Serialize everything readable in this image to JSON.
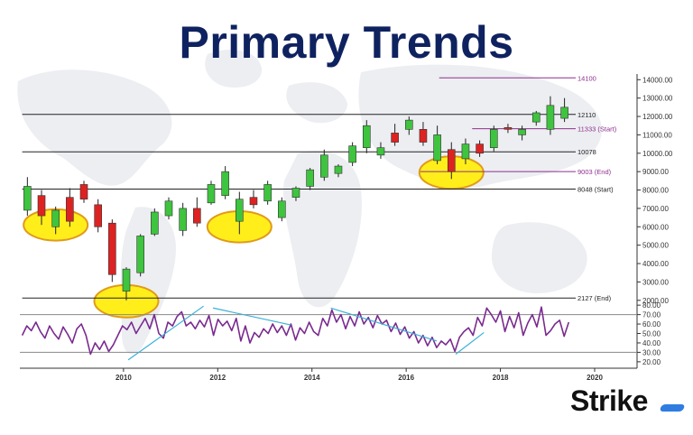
{
  "page": {
    "title": "Primary Trends",
    "brand": "Strike"
  },
  "chart_data": {
    "type": "candlestick",
    "title": "Primary Trends",
    "y_ticks": [
      14000,
      13000,
      12000,
      11000,
      10000,
      9000,
      8000,
      7000,
      6000,
      5000,
      4000,
      3000,
      2000
    ],
    "y_tick_labels": [
      "14000.00",
      "13000.00",
      "12000.00",
      "11000.00",
      "10000.00",
      "9000.00",
      "8000.00",
      "7000.00",
      "6000.00",
      "5000.00",
      "4000.00",
      "3000.00",
      "2000.00"
    ],
    "ylim": [
      1400,
      14800
    ],
    "x_ticks": [
      2010,
      2012,
      2014,
      2016,
      2018,
      2020
    ],
    "xlim": [
      2007.8,
      2020.9
    ],
    "colors": {
      "up": "#3ec43e",
      "down": "#dd2222",
      "level": "#222222",
      "marker": "#8e2f8e",
      "rsi": "#7a2a8f",
      "trend": "#3ab0d8",
      "highlight_fill": "#ffee1a",
      "highlight_edge": "#e09a1a"
    },
    "levels": [
      {
        "value": 12110,
        "label": "12110",
        "color": "#222222",
        "x_start": 2007.85
      },
      {
        "value": 10078,
        "label": "10078",
        "color": "#222222",
        "x_start": 2007.85
      },
      {
        "value": 8048,
        "label": "8048 (Start)",
        "color": "#222222",
        "x_start": 2007.85
      },
      {
        "value": 2127,
        "label": "2127 (End)",
        "color": "#222222",
        "x_start": 2007.85
      },
      {
        "value": 14100,
        "label": "14100",
        "color": "#8e2f8e",
        "x_start": 2016.7
      },
      {
        "value": 11333,
        "label": "11333 (Start)",
        "color": "#8e2f8e",
        "x_start": 2017.4
      },
      {
        "value": 9003,
        "label": "9003 (End)",
        "color": "#8e2f8e",
        "x_start": 2016.3
      }
    ],
    "candles": [
      {
        "x": 2007.96,
        "o": 6900,
        "h": 8700,
        "c": 8200,
        "l": 6600
      },
      {
        "x": 2008.26,
        "o": 7700,
        "h": 8000,
        "c": 6600,
        "l": 6100
      },
      {
        "x": 2008.56,
        "o": 6000,
        "h": 7100,
        "c": 6900,
        "l": 5600
      },
      {
        "x": 2008.86,
        "o": 7600,
        "h": 8100,
        "c": 6300,
        "l": 6000
      },
      {
        "x": 2009.16,
        "o": 8300,
        "h": 8500,
        "c": 7500,
        "l": 7300
      },
      {
        "x": 2009.46,
        "o": 7200,
        "h": 7500,
        "c": 6000,
        "l": 5700
      },
      {
        "x": 2009.76,
        "o": 6200,
        "h": 6400,
        "c": 3400,
        "l": 3000
      },
      {
        "x": 2010.06,
        "o": 2500,
        "h": 3800,
        "c": 3700,
        "l": 2000
      },
      {
        "x": 2010.36,
        "o": 3500,
        "h": 5600,
        "c": 5500,
        "l": 3300
      },
      {
        "x": 2010.66,
        "o": 5600,
        "h": 7000,
        "c": 6800,
        "l": 5500
      },
      {
        "x": 2010.96,
        "o": 6600,
        "h": 7600,
        "c": 7400,
        "l": 6400
      },
      {
        "x": 2011.26,
        "o": 5800,
        "h": 7300,
        "c": 7000,
        "l": 5500
      },
      {
        "x": 2011.56,
        "o": 7000,
        "h": 7600,
        "c": 6200,
        "l": 6000
      },
      {
        "x": 2011.86,
        "o": 7300,
        "h": 8500,
        "c": 8300,
        "l": 7200
      },
      {
        "x": 2012.16,
        "o": 7700,
        "h": 9300,
        "c": 9000,
        "l": 7500
      },
      {
        "x": 2012.46,
        "o": 6300,
        "h": 7900,
        "c": 7500,
        "l": 5600
      },
      {
        "x": 2012.76,
        "o": 7600,
        "h": 8000,
        "c": 7200,
        "l": 7000
      },
      {
        "x": 2013.06,
        "o": 7400,
        "h": 8500,
        "c": 8300,
        "l": 7200
      },
      {
        "x": 2013.36,
        "o": 6500,
        "h": 7600,
        "c": 7400,
        "l": 6300
      },
      {
        "x": 2013.66,
        "o": 7600,
        "h": 8200,
        "c": 8100,
        "l": 7400
      },
      {
        "x": 2013.96,
        "o": 8200,
        "h": 9200,
        "c": 9100,
        "l": 8000
      },
      {
        "x": 2014.26,
        "o": 8700,
        "h": 10200,
        "c": 9900,
        "l": 8500
      },
      {
        "x": 2014.56,
        "o": 8900,
        "h": 9400,
        "c": 9300,
        "l": 8700
      },
      {
        "x": 2014.86,
        "o": 9500,
        "h": 10600,
        "c": 10400,
        "l": 9300
      },
      {
        "x": 2015.16,
        "o": 10300,
        "h": 11800,
        "c": 11500,
        "l": 10000
      },
      {
        "x": 2015.46,
        "o": 9900,
        "h": 10600,
        "c": 10300,
        "l": 9700
      },
      {
        "x": 2015.76,
        "o": 11100,
        "h": 11600,
        "c": 10600,
        "l": 10400
      },
      {
        "x": 2016.06,
        "o": 11300,
        "h": 12000,
        "c": 11800,
        "l": 11000
      },
      {
        "x": 2016.36,
        "o": 11300,
        "h": 11700,
        "c": 10600,
        "l": 10400
      },
      {
        "x": 2016.66,
        "o": 9600,
        "h": 11500,
        "c": 11000,
        "l": 9400
      },
      {
        "x": 2016.96,
        "o": 10200,
        "h": 10600,
        "c": 9000,
        "l": 8600
      },
      {
        "x": 2017.26,
        "o": 9700,
        "h": 10800,
        "c": 10500,
        "l": 9400
      },
      {
        "x": 2017.56,
        "o": 10500,
        "h": 10700,
        "c": 10000,
        "l": 9800
      },
      {
        "x": 2017.86,
        "o": 10300,
        "h": 11500,
        "c": 11300,
        "l": 10100
      },
      {
        "x": 2018.16,
        "o": 11400,
        "h": 11600,
        "c": 11300,
        "l": 11100
      },
      {
        "x": 2018.46,
        "o": 11000,
        "h": 11500,
        "c": 11300,
        "l": 10700
      },
      {
        "x": 2018.76,
        "o": 11700,
        "h": 12300,
        "c": 12200,
        "l": 11500
      },
      {
        "x": 2019.06,
        "o": 11300,
        "h": 13100,
        "c": 12600,
        "l": 11000
      },
      {
        "x": 2019.36,
        "o": 11900,
        "h": 13000,
        "c": 12500,
        "l": 11700
      }
    ],
    "highlights": [
      {
        "x": 2008.56,
        "y": 6100,
        "rx_years": 0.68,
        "ry_value": 850
      },
      {
        "x": 2010.06,
        "y": 1950,
        "rx_years": 0.68,
        "ry_value": 880
      },
      {
        "x": 2012.46,
        "y": 6000,
        "rx_years": 0.68,
        "ry_value": 850
      },
      {
        "x": 2016.96,
        "y": 8950,
        "rx_years": 0.68,
        "ry_value": 880
      }
    ],
    "rsi": {
      "y_ticks": [
        80,
        70,
        60,
        50,
        40,
        30,
        20
      ],
      "y_tick_labels": [
        "80.00",
        "70.00",
        "60.00",
        "50.00",
        "40.00",
        "30.00",
        "20.00"
      ],
      "ylim": [
        17,
        83
      ],
      "ref_lines": [
        70,
        30
      ],
      "values": [
        48,
        58,
        53,
        62,
        52,
        45,
        58,
        50,
        44,
        57,
        49,
        40,
        55,
        60,
        48,
        28,
        40,
        33,
        42,
        31,
        38,
        48,
        58,
        54,
        62,
        50,
        58,
        66,
        55,
        70,
        50,
        45,
        62,
        58,
        68,
        73,
        58,
        62,
        55,
        64,
        57,
        69,
        48,
        65,
        58,
        63,
        53,
        66,
        42,
        58,
        40,
        51,
        46,
        55,
        50,
        60,
        51,
        58,
        48,
        60,
        43,
        56,
        50,
        62,
        52,
        48,
        66,
        58,
        75,
        62,
        70,
        55,
        68,
        58,
        73,
        60,
        67,
        56,
        69,
        60,
        64,
        52,
        61,
        49,
        57,
        45,
        52,
        40,
        48,
        37,
        46,
        35,
        42,
        38,
        44,
        31,
        46,
        52,
        56,
        48,
        67,
        58,
        77,
        70,
        62,
        74,
        52,
        68,
        56,
        72,
        48,
        61,
        70,
        57,
        78,
        48,
        53,
        60,
        64,
        47,
        62
      ],
      "trendlines": [
        {
          "from": [
            2010.1,
            22
          ],
          "to": [
            2011.7,
            79
          ]
        },
        {
          "from": [
            2011.9,
            77
          ],
          "to": [
            2013.55,
            59
          ]
        },
        {
          "from": [
            2014.4,
            77
          ],
          "to": [
            2016.65,
            42
          ]
        },
        {
          "from": [
            2017.65,
            51
          ],
          "to": [
            2017.05,
            28
          ]
        }
      ]
    }
  }
}
